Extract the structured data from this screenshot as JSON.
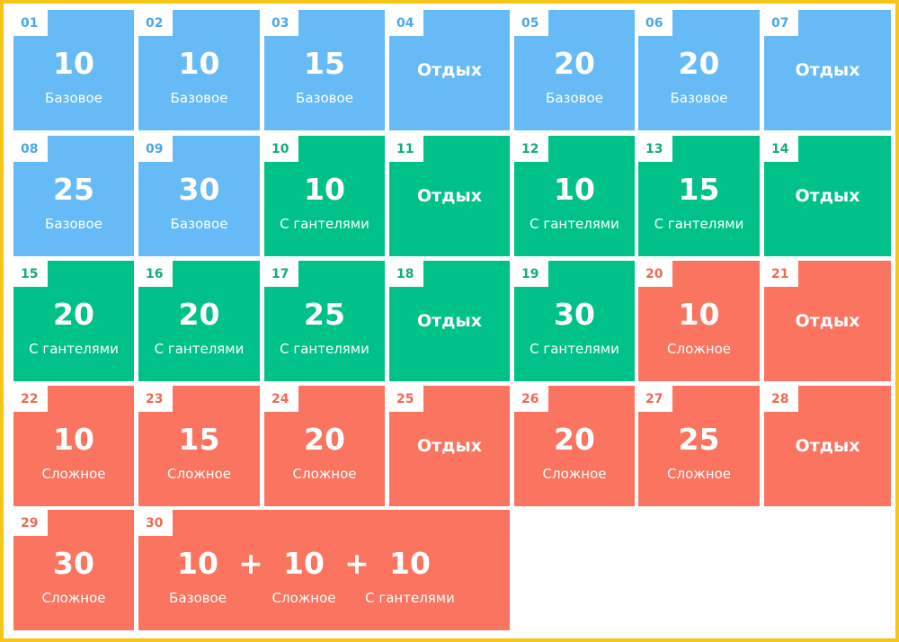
{
  "colors": {
    "border": "#f5c518",
    "basic": "#66bbf7",
    "dumbbell": "#00c288",
    "hard": "#fa7460",
    "basic_text": "#4aa8ee",
    "dumbbell_text": "#12ae7c",
    "hard_text": "#ef6a55"
  },
  "days": [
    {
      "day": "01",
      "type": "basic",
      "reps": "10",
      "label": "Базовое"
    },
    {
      "day": "02",
      "type": "basic",
      "reps": "10",
      "label": "Базовое"
    },
    {
      "day": "03",
      "type": "basic",
      "reps": "15",
      "label": "Базовое"
    },
    {
      "day": "04",
      "type": "basic",
      "rest": "Отдых"
    },
    {
      "day": "05",
      "type": "basic",
      "reps": "20",
      "label": "Базовое"
    },
    {
      "day": "06",
      "type": "basic",
      "reps": "20",
      "label": "Базовое"
    },
    {
      "day": "07",
      "type": "basic",
      "rest": "Отдых"
    },
    {
      "day": "08",
      "type": "basic",
      "reps": "25",
      "label": "Базовое"
    },
    {
      "day": "09",
      "type": "basic",
      "reps": "30",
      "label": "Базовое"
    },
    {
      "day": "10",
      "type": "dumbbell",
      "reps": "10",
      "label": "С гантелями"
    },
    {
      "day": "11",
      "type": "dumbbell",
      "rest": "Отдых"
    },
    {
      "day": "12",
      "type": "dumbbell",
      "reps": "10",
      "label": "С гантелями"
    },
    {
      "day": "13",
      "type": "dumbbell",
      "reps": "15",
      "label": "С гантелями"
    },
    {
      "day": "14",
      "type": "dumbbell",
      "rest": "Отдых"
    },
    {
      "day": "15",
      "type": "dumbbell",
      "reps": "20",
      "label": "С гантелями"
    },
    {
      "day": "16",
      "type": "dumbbell",
      "reps": "20",
      "label": "С гантелями"
    },
    {
      "day": "17",
      "type": "dumbbell",
      "reps": "25",
      "label": "С гантелями"
    },
    {
      "day": "18",
      "type": "dumbbell",
      "rest": "Отдых"
    },
    {
      "day": "19",
      "type": "dumbbell",
      "reps": "30",
      "label": "С гантелями"
    },
    {
      "day": "20",
      "type": "hard",
      "reps": "10",
      "label": "Сложное"
    },
    {
      "day": "21",
      "type": "hard",
      "rest": "Отдых"
    },
    {
      "day": "22",
      "type": "hard",
      "reps": "10",
      "label": "Сложное"
    },
    {
      "day": "23",
      "type": "hard",
      "reps": "15",
      "label": "Сложное"
    },
    {
      "day": "24",
      "type": "hard",
      "reps": "20",
      "label": "Сложное"
    },
    {
      "day": "25",
      "type": "hard",
      "rest": "Отдых"
    },
    {
      "day": "26",
      "type": "hard",
      "reps": "20",
      "label": "Сложное"
    },
    {
      "day": "27",
      "type": "hard",
      "reps": "25",
      "label": "Сложное"
    },
    {
      "day": "28",
      "type": "hard",
      "rest": "Отдых"
    },
    {
      "day": "29",
      "type": "hard",
      "reps": "30",
      "label": "Сложное"
    },
    {
      "day": "30",
      "type": "hard",
      "combo": [
        {
          "reps": "10",
          "label": "Базовое"
        },
        {
          "reps": "10",
          "label": "Сложное"
        },
        {
          "reps": "10",
          "label": "С гантелями"
        }
      ],
      "plus": "+"
    }
  ]
}
